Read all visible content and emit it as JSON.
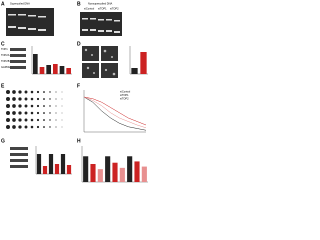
{
  "panels": [
    {
      "label": "A",
      "title": "Supercoiled DNA"
    },
    {
      "label": "B",
      "title": "Nonsupercoiled DNA"
    },
    {
      "label": "C"
    },
    {
      "label": "D"
    },
    {
      "label": "E"
    },
    {
      "label": "F"
    },
    {
      "label": "G"
    },
    {
      "label": "H"
    }
  ],
  "lanes": [
    "siControl",
    "siTOP1",
    "siTOP2"
  ],
  "blot_labels": [
    "TOP1",
    "TOP2A",
    "TOP2B",
    "GAPDH"
  ],
  "bar_charts": [
    {
      "values": [
        1,
        0.35,
        0.45,
        0.5,
        0.4,
        0.3
      ],
      "colors": [
        "#222222",
        "#cc2222"
      ],
      "ylim": [
        0,
        1.4
      ]
    },
    {
      "values": [
        0.3,
        1.1
      ],
      "colors": [
        "#222222",
        "#cc2222"
      ],
      "ylim": [
        0,
        1.4
      ]
    },
    {
      "values": [
        1,
        0.4,
        1,
        0.5,
        1,
        0.45
      ],
      "colors": [
        "#222222",
        "#cc2222"
      ],
      "ylim": [
        0,
        1.4
      ]
    },
    {
      "values": [
        1,
        0.7,
        0.5,
        1,
        0.75,
        0.55,
        1,
        0.8,
        0.6
      ],
      "colors": [
        "#222222",
        "#cc2222",
        "#e89090"
      ],
      "ylim": [
        0,
        1.4
      ]
    }
  ],
  "line_chart": {
    "ylim": [
      0,
      1.2
    ],
    "series": [
      {
        "name": "siControl",
        "color": "#222222",
        "values": [
          1,
          0.85,
          0.6,
          0.4,
          0.25,
          0.15,
          0.1,
          0.05
        ]
      },
      {
        "name": "siTOP1",
        "color": "#cc2222",
        "values": [
          1,
          0.95,
          0.85,
          0.7,
          0.55,
          0.4,
          0.3,
          0.2
        ]
      },
      {
        "name": "siTOP2",
        "color": "#e89090",
        "values": [
          1,
          0.9,
          0.75,
          0.55,
          0.4,
          0.3,
          0.2,
          0.12
        ]
      }
    ]
  }
}
